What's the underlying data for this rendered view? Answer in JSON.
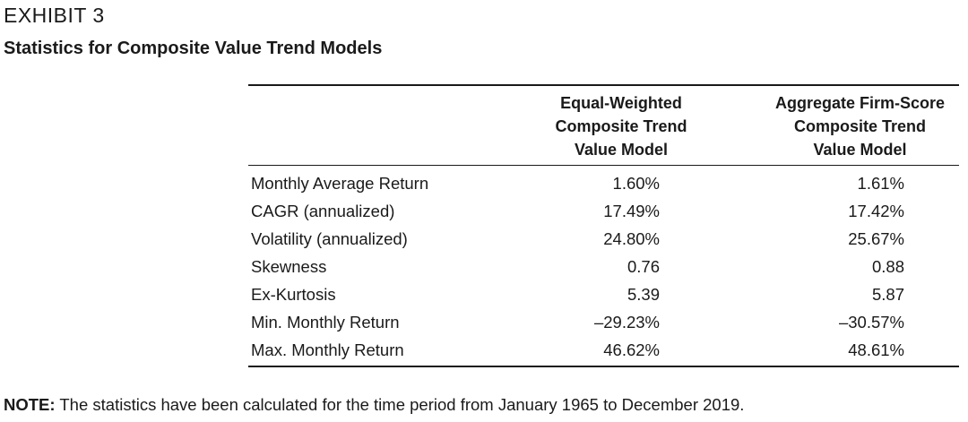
{
  "exhibit": {
    "label": "EXHIBIT 3",
    "title": "Statistics for Composite Value Trend Models"
  },
  "table": {
    "headers": [
      "",
      "Equal-Weighted\nComposite Trend\nValue Model",
      "Aggregate Firm-Score\nComposite Trend\nValue Model"
    ],
    "rows": [
      {
        "label": "Monthly Average Return",
        "equal_weighted": "1.60%",
        "aggregate": "1.61%"
      },
      {
        "label": "CAGR (annualized)",
        "equal_weighted": "17.49%",
        "aggregate": "17.42%"
      },
      {
        "label": "Volatility (annualized)",
        "equal_weighted": "24.80%",
        "aggregate": "25.67%"
      },
      {
        "label": "Skewness",
        "equal_weighted": "0.76",
        "aggregate": "0.88"
      },
      {
        "label": "Ex-Kurtosis",
        "equal_weighted": "5.39",
        "aggregate": "5.87"
      },
      {
        "label": "Min. Monthly Return",
        "equal_weighted": "–29.23%",
        "aggregate": "–30.57%"
      },
      {
        "label": "Max. Monthly Return",
        "equal_weighted": "46.62%",
        "aggregate": "48.61%"
      }
    ]
  },
  "note": {
    "label": "NOTE:",
    "text": " The statistics have been calculated for the time period from January 1965 to December 2019."
  }
}
